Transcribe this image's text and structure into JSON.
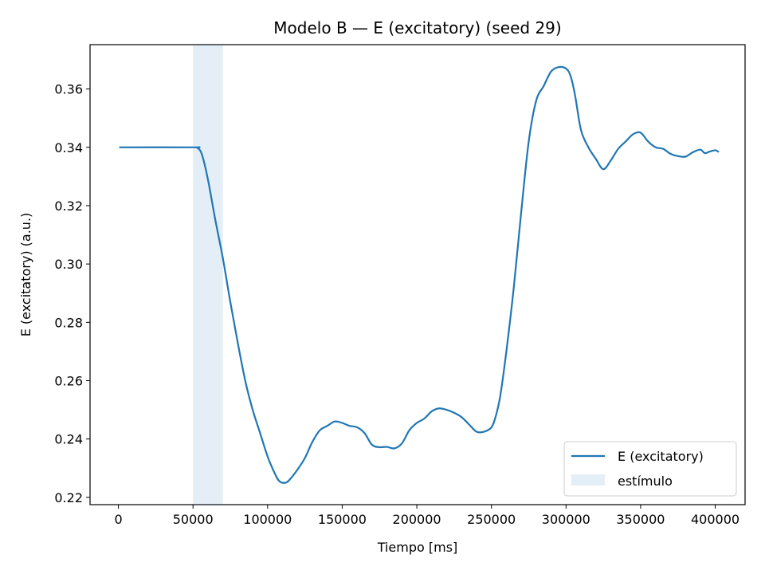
{
  "chart_data": {
    "type": "line",
    "title": "Modelo B — E (excitatory) (seed 29)",
    "xlabel": "Tiempo [ms]",
    "ylabel": "E (excitatory) (a.u.)",
    "xlim": [
      -19000,
      420000
    ],
    "ylim": [
      0.2175,
      0.3752
    ],
    "xticks": [
      0,
      50000,
      100000,
      150000,
      200000,
      250000,
      300000,
      350000,
      400000
    ],
    "xtick_labels": [
      "0",
      "50000",
      "100000",
      "150000",
      "200000",
      "250000",
      "300000",
      "350000",
      "400000"
    ],
    "yticks": [
      0.22,
      0.24,
      0.26,
      0.28,
      0.3,
      0.32,
      0.34,
      0.36
    ],
    "ytick_labels": [
      "0.22",
      "0.24",
      "0.26",
      "0.28",
      "0.30",
      "0.32",
      "0.34",
      "0.36"
    ],
    "grid": false,
    "legend_position": "lower right",
    "series": [
      {
        "name": "E (excitatory)",
        "color": "#1f77b4",
        "x": [
          1000,
          50000,
          53000,
          56000,
          60000,
          65000,
          70000,
          75000,
          80000,
          85000,
          90000,
          95000,
          100000,
          105000,
          108000,
          112000,
          115000,
          120000,
          125000,
          130000,
          135000,
          140000,
          145000,
          150000,
          155000,
          160000,
          165000,
          170000,
          175000,
          180000,
          185000,
          190000,
          195000,
          200000,
          205000,
          210000,
          215000,
          220000,
          225000,
          230000,
          235000,
          240000,
          245000,
          250000,
          253000,
          256000,
          260000,
          265000,
          270000,
          275000,
          280000,
          285000,
          290000,
          295000,
          300000,
          303000,
          306000,
          310000,
          315000,
          320000,
          325000,
          330000,
          335000,
          340000,
          345000,
          350000,
          355000,
          360000,
          365000,
          370000,
          375000,
          380000,
          385000,
          390000,
          393000,
          396000,
          400000,
          402000
        ],
        "values": [
          0.34,
          0.34,
          0.3398,
          0.3375,
          0.329,
          0.315,
          0.302,
          0.287,
          0.273,
          0.26,
          0.25,
          0.242,
          0.234,
          0.228,
          0.2255,
          0.225,
          0.2262,
          0.2295,
          0.2335,
          0.239,
          0.243,
          0.2445,
          0.246,
          0.2455,
          0.2445,
          0.244,
          0.242,
          0.238,
          0.2372,
          0.2373,
          0.2368,
          0.2385,
          0.243,
          0.2455,
          0.247,
          0.2495,
          0.2505,
          0.25,
          0.249,
          0.2475,
          0.245,
          0.2425,
          0.2425,
          0.244,
          0.248,
          0.255,
          0.27,
          0.292,
          0.318,
          0.342,
          0.356,
          0.361,
          0.366,
          0.3675,
          0.367,
          0.3645,
          0.358,
          0.346,
          0.34,
          0.336,
          0.3325,
          0.3355,
          0.3395,
          0.342,
          0.3445,
          0.345,
          0.342,
          0.34,
          0.3395,
          0.3378,
          0.337,
          0.3368,
          0.3383,
          0.3392,
          0.338,
          0.3385,
          0.339,
          0.3385
        ]
      }
    ],
    "shaded_region": {
      "name": "estímulo",
      "x_start": 50000,
      "x_end": 70000,
      "color": "#1f77b4",
      "opacity": 0.12
    }
  }
}
